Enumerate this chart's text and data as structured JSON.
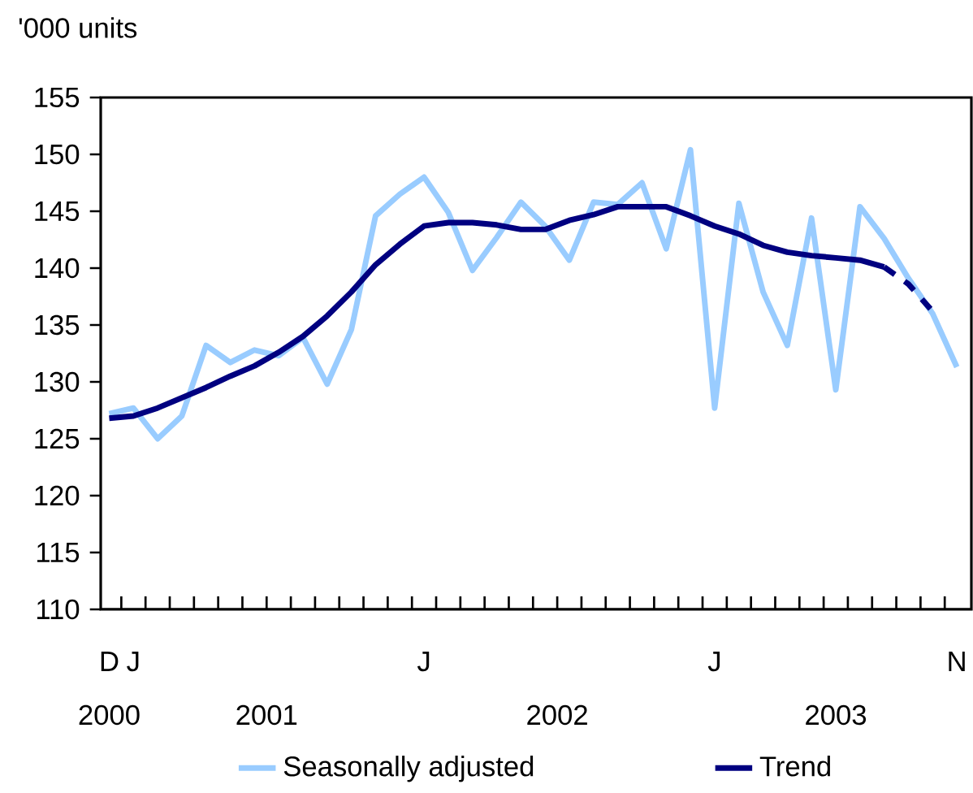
{
  "chart_data": {
    "type": "line",
    "ylabel": "'000 units",
    "categories": [
      "D",
      "J",
      null,
      null,
      null,
      null,
      null,
      null,
      null,
      null,
      null,
      null,
      null,
      "J",
      null,
      null,
      null,
      null,
      null,
      null,
      null,
      null,
      null,
      null,
      null,
      "J",
      null,
      null,
      null,
      null,
      null,
      null,
      null,
      null,
      null,
      "N"
    ],
    "annotations": [
      "2000",
      "2001",
      "2002",
      "2003"
    ],
    "ylim": [
      110,
      155
    ],
    "yticks": [
      110,
      115,
      120,
      125,
      130,
      135,
      140,
      145,
      150,
      155
    ],
    "legend": "bottom",
    "grid": false,
    "series": [
      {
        "name": "Seasonally adjusted",
        "color": "#99ccff",
        "line_style": "solid",
        "values": [
          127.2,
          127.7,
          125.0,
          127.0,
          133.2,
          131.7,
          132.8,
          132.3,
          133.9,
          129.8,
          134.6,
          144.6,
          146.5,
          148.0,
          144.9,
          139.8,
          142.7,
          145.8,
          143.7,
          140.7,
          145.8,
          145.6,
          147.5,
          141.7,
          150.4,
          127.7,
          145.7,
          137.9,
          133.2,
          144.4,
          129.3,
          145.4,
          142.6,
          139.1,
          136.0,
          131.3
        ]
      },
      {
        "name": "Trend",
        "color": "#000080",
        "line_style": "solid",
        "values": [
          126.8,
          127.0,
          127.7,
          128.6,
          129.5,
          130.5,
          131.4,
          132.6,
          134.0,
          135.8,
          137.9,
          140.3,
          142.1,
          143.7,
          144.0,
          144.0,
          143.8,
          143.4,
          143.4,
          144.2,
          144.7,
          145.4,
          145.4,
          145.4,
          144.6,
          143.7,
          143.0,
          142.0,
          141.4,
          141.1,
          140.9,
          140.7,
          140.1,
          null,
          null,
          null
        ]
      },
      {
        "color": "#000080",
        "line_style": "dashed",
        "values": [
          null,
          null,
          null,
          null,
          null,
          null,
          null,
          null,
          null,
          null,
          null,
          null,
          null,
          null,
          null,
          null,
          null,
          null,
          null,
          null,
          null,
          null,
          null,
          null,
          null,
          null,
          null,
          null,
          null,
          null,
          null,
          null,
          140.1,
          138.6,
          136.2,
          null
        ]
      }
    ]
  }
}
